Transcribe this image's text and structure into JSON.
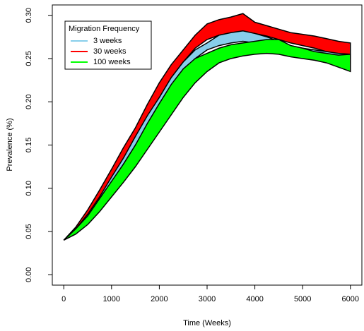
{
  "chart_data": {
    "type": "band",
    "x_label": "Time (Weeks)",
    "y_label": "Prevalence (%)",
    "legend_title": "Migration Frequency",
    "legend_position": "top-left",
    "x": [
      0,
      250,
      500,
      750,
      1000,
      1250,
      1500,
      1750,
      2000,
      2250,
      2500,
      2750,
      3000,
      3250,
      3500,
      3750,
      4000,
      4250,
      4500,
      4750,
      5000,
      5250,
      5500,
      5750,
      6000
    ],
    "series": [
      {
        "name": "30 weeks",
        "color": "#ff0000",
        "upper": [
          0.04,
          0.055,
          0.075,
          0.098,
          0.122,
          0.147,
          0.17,
          0.197,
          0.222,
          0.243,
          0.26,
          0.277,
          0.29,
          0.295,
          0.298,
          0.302,
          0.292,
          0.288,
          0.284,
          0.28,
          0.278,
          0.276,
          0.273,
          0.27,
          0.268
        ],
        "lower": [
          0.04,
          0.052,
          0.068,
          0.09,
          0.112,
          0.135,
          0.158,
          0.183,
          0.205,
          0.228,
          0.246,
          0.262,
          0.272,
          0.277,
          0.279,
          0.28,
          0.279,
          0.276,
          0.272,
          0.268,
          0.265,
          0.262,
          0.258,
          0.255,
          0.25
        ]
      },
      {
        "name": "3 weeks",
        "color": "#87ceeb",
        "upper": [
          0.04,
          0.053,
          0.07,
          0.09,
          0.113,
          0.135,
          0.16,
          0.184,
          0.205,
          0.228,
          0.246,
          0.26,
          0.268,
          0.277,
          0.28,
          0.282,
          0.279,
          0.275,
          0.27,
          0.265,
          0.262,
          0.26,
          0.258,
          0.256,
          0.255
        ],
        "lower": [
          0.04,
          0.05,
          0.064,
          0.084,
          0.105,
          0.128,
          0.15,
          0.173,
          0.196,
          0.218,
          0.237,
          0.25,
          0.26,
          0.265,
          0.268,
          0.27,
          0.268,
          0.265,
          0.262,
          0.258,
          0.255,
          0.252,
          0.25,
          0.248,
          0.245
        ]
      },
      {
        "name": "100 weeks",
        "color": "#00ff00",
        "upper": [
          0.04,
          0.053,
          0.068,
          0.088,
          0.108,
          0.128,
          0.15,
          0.175,
          0.198,
          0.22,
          0.238,
          0.25,
          0.256,
          0.262,
          0.266,
          0.268,
          0.27,
          0.272,
          0.272,
          0.265,
          0.262,
          0.258,
          0.256,
          0.254,
          0.255
        ],
        "lower": [
          0.04,
          0.047,
          0.058,
          0.073,
          0.09,
          0.107,
          0.125,
          0.145,
          0.165,
          0.185,
          0.205,
          0.222,
          0.235,
          0.245,
          0.25,
          0.253,
          0.255,
          0.256,
          0.255,
          0.252,
          0.25,
          0.248,
          0.245,
          0.24,
          0.235
        ]
      }
    ],
    "legend_order": [
      1,
      0,
      2
    ],
    "xlim": [
      -240,
      6240
    ],
    "xticks": [
      0,
      1000,
      2000,
      3000,
      4000,
      5000,
      6000
    ],
    "ylim": [
      -0.012,
      0.312
    ],
    "yticks": [
      {
        "value": 0,
        "label": "0.00"
      },
      {
        "value": 0.05,
        "label": "0.05"
      },
      {
        "value": 0.1,
        "label": "0.10"
      },
      {
        "value": 0.15,
        "label": "0.15"
      },
      {
        "value": 0.2,
        "label": "0.20"
      },
      {
        "value": 0.25,
        "label": "0.25"
      },
      {
        "value": 0.3,
        "label": "0.30"
      }
    ]
  }
}
